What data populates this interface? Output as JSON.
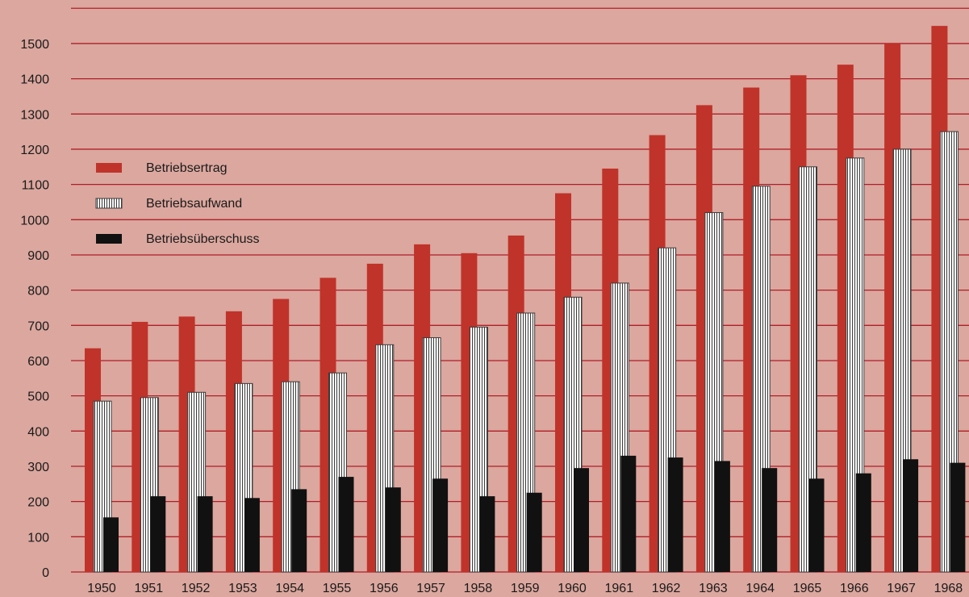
{
  "chart_data": {
    "type": "bar",
    "title": "",
    "xlabel": "",
    "ylabel": "",
    "ylim": [
      0,
      1500
    ],
    "yticks": [
      0,
      100,
      200,
      300,
      400,
      500,
      600,
      700,
      800,
      900,
      1000,
      1100,
      1200,
      1300,
      1400,
      1500
    ],
    "grid": true,
    "legend_position": "top-left",
    "categories": [
      "1950",
      "1951",
      "1952",
      "1953",
      "1954",
      "1955",
      "1956",
      "1957",
      "1958",
      "1959",
      "1960",
      "1961",
      "1962",
      "1963",
      "1964",
      "1965",
      "1966",
      "1967",
      "1968"
    ],
    "series": [
      {
        "name": "Betriebsertrag",
        "color": "#c0332a",
        "pattern": "solid",
        "values": [
          635,
          710,
          725,
          740,
          775,
          835,
          875,
          930,
          905,
          955,
          1075,
          1145,
          1240,
          1325,
          1375,
          1410,
          1440,
          1500,
          1550
        ]
      },
      {
        "name": "Betriebsaufwand",
        "color": "#ffffff",
        "pattern": "vertical-hatch",
        "values": [
          485,
          495,
          510,
          535,
          540,
          565,
          645,
          665,
          695,
          735,
          780,
          820,
          920,
          1020,
          1095,
          1150,
          1175,
          1200,
          1250
        ]
      },
      {
        "name": "Betriebsüberschuss",
        "color": "#111111",
        "pattern": "solid",
        "values": [
          155,
          215,
          215,
          210,
          235,
          270,
          240,
          265,
          215,
          225,
          295,
          330,
          325,
          315,
          295,
          265,
          280,
          320,
          310
        ]
      }
    ]
  }
}
